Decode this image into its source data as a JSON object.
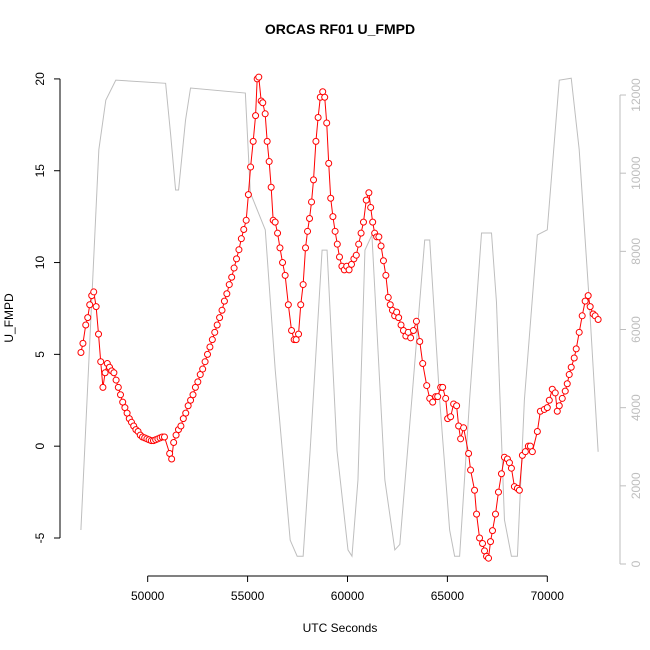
{
  "chart_data": {
    "type": "line",
    "title": "ORCAS RF01 U_FMPD",
    "x_label": "UTC Seconds",
    "y_label": "U_FMPD",
    "xlim": [
      45612,
      73638
    ],
    "ylim": [
      -7.07,
      21.03
    ],
    "y2lim": [
      -307,
      12896
    ],
    "xticks": [
      50000,
      55000,
      60000,
      65000,
      70000
    ],
    "yticks": [
      -5,
      0,
      5,
      10,
      15,
      20
    ],
    "y2ticks": [
      0,
      2000,
      4000,
      6000,
      8000,
      10000,
      12000
    ],
    "series": [
      {
        "color": "#ff0000",
        "marker": "circle",
        "x": [
          46660,
          46760,
          46900,
          47000,
          47100,
          47200,
          47300,
          47420,
          47540,
          47650,
          47760,
          47870,
          47980,
          48090,
          48200,
          48310,
          48420,
          48530,
          48640,
          48750,
          48860,
          48970,
          49080,
          49190,
          49300,
          49410,
          49520,
          49630,
          49740,
          49850,
          49960,
          50070,
          50180,
          50290,
          50400,
          50510,
          50620,
          50730,
          50840,
          51100,
          51200,
          51300,
          51421,
          51542,
          51663,
          51784,
          51905,
          52026,
          52147,
          52268,
          52389,
          52510,
          52631,
          52752,
          52873,
          52994,
          53115,
          53236,
          53357,
          53478,
          53599,
          53720,
          53841,
          53962,
          54083,
          54204,
          54325,
          54446,
          54567,
          54688,
          54809,
          54930,
          55040,
          55150,
          55280,
          55400,
          55480,
          55560,
          55680,
          55760,
          55880,
          55980,
          56080,
          56180,
          56280,
          56380,
          56500,
          56620,
          56750,
          56880,
          57040,
          57200,
          57330,
          57430,
          57550,
          57660,
          57780,
          57900,
          58000,
          58100,
          58200,
          58300,
          58420,
          58530,
          58640,
          58760,
          58860,
          58960,
          59060,
          59160,
          59270,
          59380,
          59490,
          59600,
          59720,
          59840,
          59960,
          60080,
          60200,
          60320,
          60440,
          60560,
          60680,
          60800,
          60940,
          61070,
          61160,
          61260,
          61360,
          61460,
          61570,
          61680,
          61800,
          61920,
          62040,
          62140,
          62250,
          62360,
          62460,
          62560,
          62680,
          62800,
          62920,
          63040,
          63160,
          63300,
          63450,
          63616,
          63765,
          63965,
          64115,
          64264,
          64414,
          64514,
          64663,
          64763,
          64913,
          65013,
          65162,
          65312,
          65461,
          65561,
          65661,
          65810,
          66060,
          66160,
          66359,
          66459,
          66609,
          66758,
          66858,
          66958,
          67058,
          67157,
          67257,
          67407,
          67556,
          67706,
          67855,
          68005,
          68105,
          68204,
          68354,
          68504,
          68603,
          68753,
          68903,
          69052,
          69152,
          69252,
          69502,
          69652,
          69850,
          70000,
          70100,
          70249,
          70399,
          70499,
          70599,
          70749,
          70898,
          70998,
          71097,
          71197,
          71347,
          71447,
          71596,
          71746,
          71895,
          72045,
          72145,
          72294,
          72394,
          72544
        ],
        "values": [
          5.1,
          5.6,
          6.6,
          7.0,
          7.7,
          8.2,
          8.4,
          7.6,
          6.1,
          4.6,
          3.2,
          4.0,
          4.5,
          4.3,
          4.1,
          4.0,
          3.6,
          3.2,
          2.8,
          2.4,
          2.1,
          1.8,
          1.5,
          1.3,
          1.1,
          0.9,
          0.8,
          0.6,
          0.5,
          0.45,
          0.4,
          0.35,
          0.3,
          0.3,
          0.35,
          0.4,
          0.45,
          0.5,
          0.5,
          -0.4,
          -0.7,
          0.2,
          0.6,
          0.9,
          1.1,
          1.5,
          1.8,
          2.2,
          2.5,
          2.8,
          3.2,
          3.5,
          3.9,
          4.2,
          4.6,
          5.0,
          5.4,
          5.8,
          6.2,
          6.6,
          7.0,
          7.4,
          7.9,
          8.3,
          8.8,
          9.2,
          9.7,
          10.2,
          10.7,
          11.3,
          11.8,
          12.3,
          13.7,
          15.2,
          16.6,
          18.0,
          20.0,
          20.1,
          18.8,
          18.7,
          18.1,
          16.6,
          15.5,
          14.1,
          12.3,
          12.2,
          11.6,
          10.8,
          10.0,
          9.3,
          7.7,
          6.3,
          5.8,
          5.8,
          6.1,
          7.7,
          8.8,
          10.8,
          11.7,
          12.4,
          13.3,
          14.5,
          16.6,
          17.9,
          19.0,
          19.3,
          19.0,
          17.6,
          15.4,
          13.5,
          12.5,
          11.7,
          11.0,
          10.3,
          9.8,
          9.6,
          9.8,
          9.6,
          9.9,
          10.2,
          10.4,
          11.0,
          11.6,
          12.2,
          13.4,
          13.8,
          13.0,
          12.2,
          11.6,
          11.4,
          11.4,
          10.9,
          10.1,
          9.3,
          8.1,
          7.7,
          7.4,
          7.1,
          7.3,
          7.0,
          6.6,
          6.3,
          6.0,
          6.2,
          5.9,
          6.3,
          6.8,
          5.7,
          4.5,
          3.3,
          2.6,
          2.4,
          2.7,
          2.7,
          3.2,
          3.2,
          2.6,
          1.5,
          1.6,
          2.3,
          2.2,
          1.1,
          0.4,
          1.0,
          -0.4,
          -1.3,
          -2.4,
          -3.7,
          -5.0,
          -5.3,
          -5.7,
          -6.0,
          -6.1,
          -5.2,
          -4.6,
          -3.7,
          -2.5,
          -1.5,
          -0.6,
          -0.7,
          -0.9,
          -1.2,
          -2.2,
          -2.3,
          -2.4,
          -0.5,
          -0.3,
          0.0,
          0.0,
          -0.3,
          0.8,
          1.9,
          2.0,
          2.1,
          2.5,
          3.1,
          2.9,
          1.9,
          2.2,
          2.6,
          3.0,
          3.4,
          3.9,
          4.3,
          4.8,
          5.3,
          6.2,
          7.1,
          7.9,
          8.2,
          7.6,
          7.2,
          7.1,
          6.9
        ]
      },
      {
        "color": "#bebebe",
        "axis": "y2",
        "x": [
          46658,
          47556,
          47905,
          48404,
          50898,
          51147,
          51397,
          51546,
          51895,
          52145,
          54888,
          55137,
          55885,
          56384,
          57132,
          57481,
          57781,
          58130,
          58728,
          58978,
          59476,
          60025,
          60224,
          60524,
          60873,
          61222,
          61870,
          62369,
          62619,
          63217,
          63865,
          64115,
          64613,
          65112,
          65362,
          65611,
          66110,
          66708,
          67207,
          67456,
          67855,
          68204,
          68504,
          68853,
          69501,
          69998,
          70599,
          71197,
          71596,
          72095,
          72544
        ],
        "values": [
          870,
          10600,
          11870,
          12380,
          12300,
          11000,
          9570,
          9570,
          11360,
          12180,
          12050,
          9500,
          8550,
          4960,
          610,
          200,
          200,
          2900,
          8030,
          8030,
          2900,
          360,
          200,
          2150,
          8030,
          8420,
          2150,
          360,
          500,
          4200,
          8290,
          8290,
          4200,
          870,
          200,
          200,
          4200,
          8470,
          8470,
          6700,
          1130,
          200,
          200,
          4200,
          8420,
          8550,
          12380,
          12430,
          10600,
          6750,
          2870
        ]
      }
    ]
  }
}
